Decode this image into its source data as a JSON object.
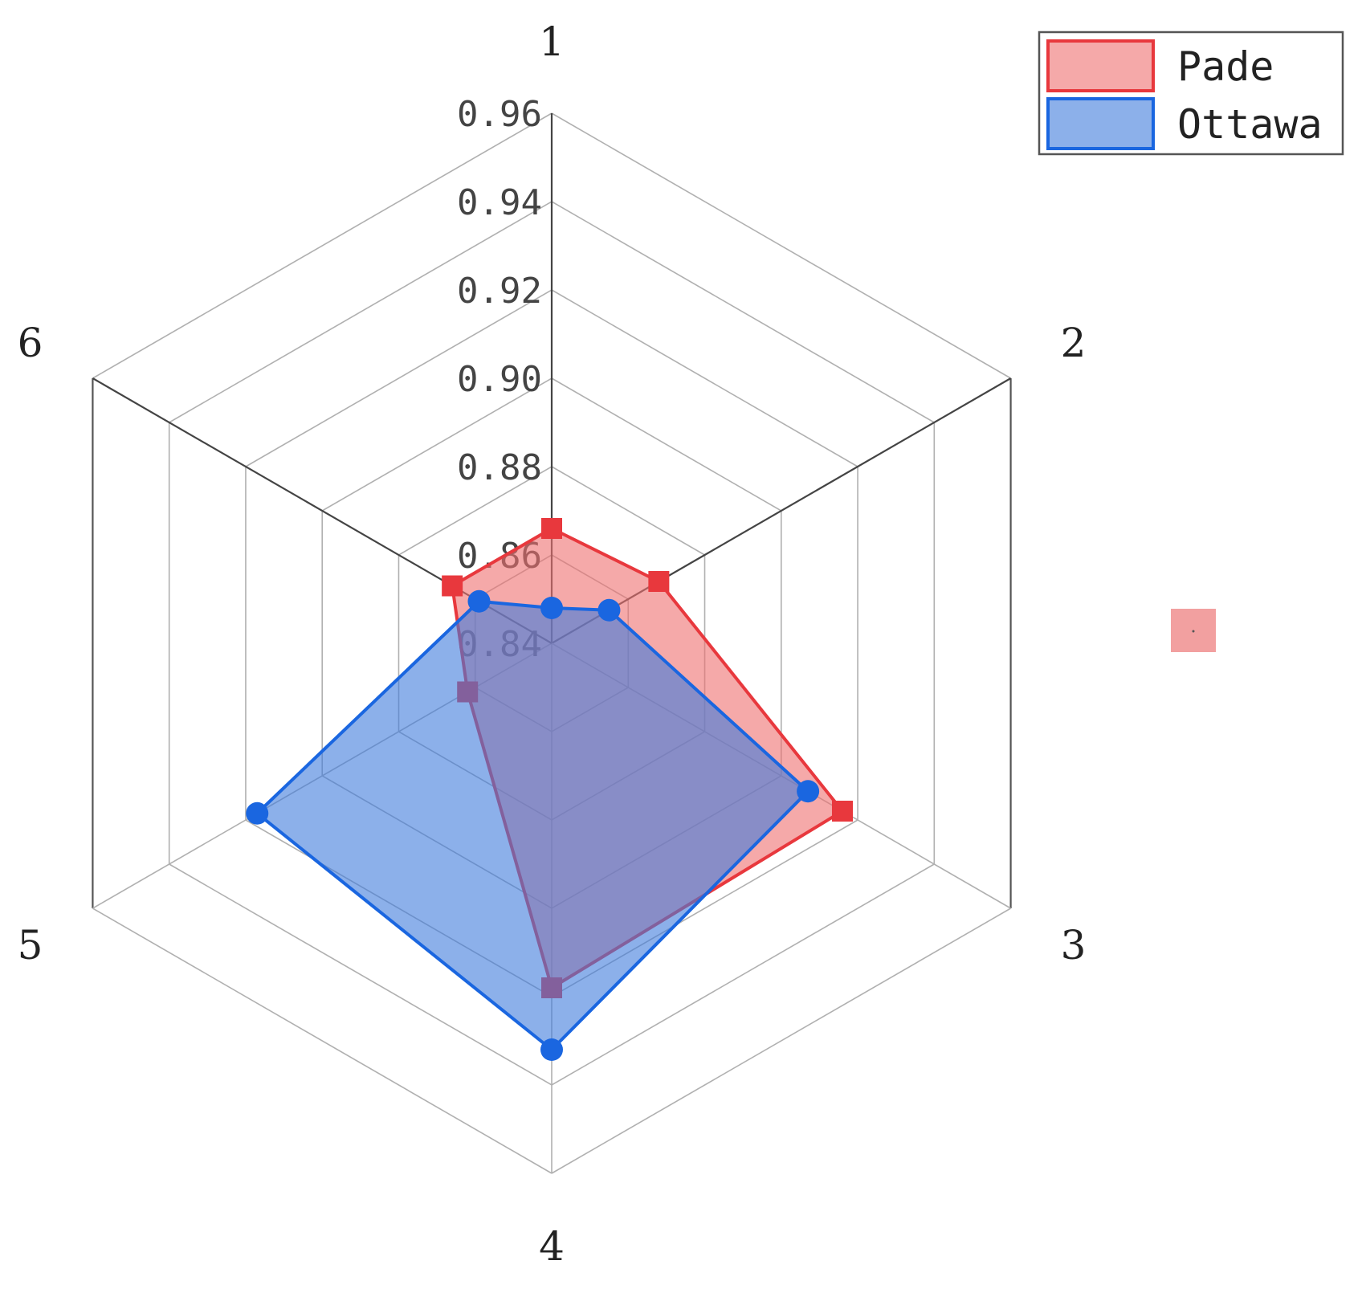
{
  "chart_data": {
    "type": "radar",
    "axes": [
      "1",
      "2",
      "3",
      "4",
      "5",
      "6"
    ],
    "ticks": [
      "0.84",
      "0.86",
      "0.88",
      "0.90",
      "0.92",
      "0.94",
      "0.96"
    ],
    "rlim": [
      0.84,
      0.96
    ],
    "grid": true,
    "legend_position": "top-right",
    "series": [
      {
        "name": "Pade",
        "values": [
          0.866,
          0.868,
          0.916,
          0.918,
          0.862,
          0.866
        ],
        "marker": "square",
        "line_color": "#e8383d",
        "fill_color": "#ee6f6f"
      },
      {
        "name": "Ottawa",
        "values": [
          0.848,
          0.855,
          0.907,
          0.932,
          0.917,
          0.859
        ],
        "marker": "circle",
        "line_color": "#1a66e0",
        "fill_color": "#3f7bdc"
      }
    ],
    "extra_marker_color": "#f2a0a0"
  }
}
